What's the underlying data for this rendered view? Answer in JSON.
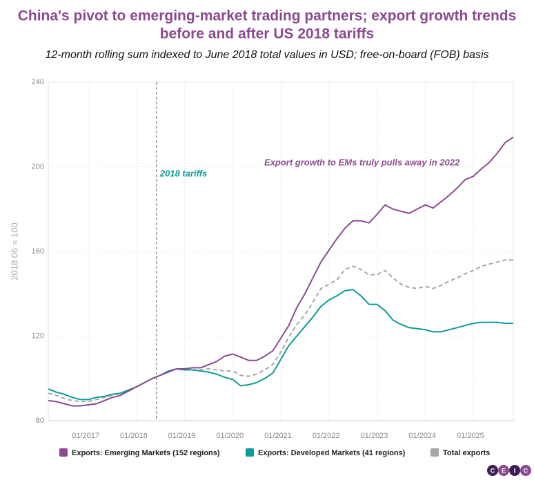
{
  "chart_data": {
    "type": "line",
    "title": [
      "China's pivot to emerging-market trading partners; export growth trends",
      "before and after US 2018 tariffs"
    ],
    "subtitle": "12-month rolling sum indexed to June 2018 total values in USD; free-on-board (FOB) basis",
    "y_label": "2018.06 = 100",
    "x": [
      "03/2016",
      "05/2016",
      "07/2016",
      "09/2016",
      "11/2016",
      "01/2017",
      "03/2017",
      "05/2017",
      "07/2017",
      "09/2017",
      "11/2017",
      "01/2018",
      "03/2018",
      "05/2018",
      "07/2018",
      "09/2018",
      "11/2018",
      "01/2019",
      "03/2019",
      "05/2019",
      "07/2019",
      "09/2019",
      "11/2019",
      "01/2020",
      "03/2020",
      "05/2020",
      "07/2020",
      "09/2020",
      "11/2020",
      "01/2021",
      "03/2021",
      "05/2021",
      "07/2021",
      "09/2021",
      "11/2021",
      "01/2022",
      "03/2022",
      "05/2022",
      "07/2022",
      "09/2022",
      "11/2022",
      "01/2023",
      "03/2023",
      "05/2023",
      "07/2023",
      "09/2023",
      "11/2023",
      "01/2024",
      "03/2024",
      "05/2024",
      "07/2024",
      "09/2024",
      "11/2024",
      "01/2025",
      "03/2025",
      "05/2025",
      "07/2025",
      "09/2025",
      "11/2025"
    ],
    "xlim": [
      "03/2016",
      "11/2025"
    ],
    "xticks": [
      "01/2017",
      "01/2018",
      "01/2019",
      "01/2020",
      "01/2021",
      "01/2022",
      "01/2023",
      "01/2024",
      "01/2025"
    ],
    "ylim": [
      80,
      240
    ],
    "yticks": [
      80,
      120,
      160,
      200,
      240
    ],
    "grid": true,
    "series": [
      {
        "name": "Exports: Emerging Markets (152 regions)",
        "color": "#8b4a8f",
        "style": "solid",
        "values": [
          89.5,
          89,
          88,
          87,
          87,
          87.5,
          88,
          89.5,
          91,
          92,
          94,
          96,
          98,
          100,
          101.5,
          103,
          104.5,
          104.5,
          105,
          105,
          106.5,
          108,
          110.5,
          111.5,
          110,
          108.5,
          108.5,
          110.5,
          113,
          119,
          125,
          133.5,
          140,
          147.5,
          155,
          160.5,
          166,
          171,
          174.5,
          174.5,
          173.5,
          177.5,
          182,
          180,
          179,
          178,
          180,
          182,
          180.5,
          183.5,
          186.5,
          190,
          194,
          195.5,
          199,
          202,
          206.5,
          211.5,
          214
        ]
      },
      {
        "name": "Exports: Developed Markets (41 regions)",
        "color": "#0f9b96",
        "style": "solid",
        "values": [
          95,
          93.5,
          92.5,
          91,
          90,
          90,
          91,
          91.5,
          92.5,
          93,
          94.5,
          96,
          98,
          100,
          101.5,
          103.5,
          104.5,
          104,
          104,
          103.5,
          103,
          102,
          100.5,
          99.5,
          96.5,
          97,
          98,
          100,
          102.5,
          109,
          115.5,
          120,
          124.5,
          129,
          134,
          137,
          139,
          141.5,
          142,
          139,
          135,
          135,
          132,
          127.5,
          125.5,
          124,
          123.5,
          123,
          122,
          122,
          123,
          124,
          125,
          126,
          126.5,
          126.5,
          126.5,
          126,
          126
        ]
      },
      {
        "name": "Total exports",
        "color": "#a6a6a6",
        "style": "dashed",
        "values": [
          93,
          92,
          90.5,
          89.5,
          89,
          89,
          90,
          91,
          92,
          93,
          94,
          96,
          98,
          100,
          101.5,
          103.5,
          104.5,
          104,
          104,
          104,
          104.5,
          104,
          103.5,
          103.5,
          101.5,
          101,
          102,
          104,
          106.5,
          112.5,
          119.5,
          125.5,
          130,
          136,
          142.5,
          144.5,
          146.5,
          151.5,
          153,
          151.5,
          149,
          149,
          151,
          147.5,
          144.5,
          143,
          142.5,
          143.5,
          142.5,
          144,
          146,
          147.5,
          149.5,
          151,
          153,
          154,
          155,
          156,
          156
        ]
      }
    ],
    "annotations": [
      {
        "text": "2018 tariffs",
        "x": "06/2018",
        "color": "#0f9b96"
      },
      {
        "text": "Export growth to EMs truly pulls away in 2022",
        "color": "#8b4a8f"
      }
    ],
    "logo": [
      "C",
      "E",
      "I",
      "C"
    ]
  }
}
